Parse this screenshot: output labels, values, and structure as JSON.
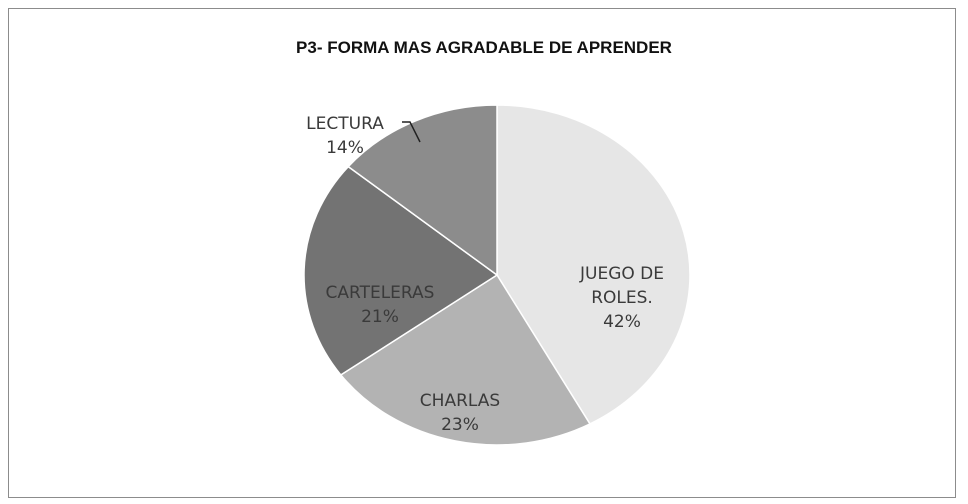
{
  "chart_data": {
    "type": "pie",
    "title": "P3- FORMA MAS AGRADABLE DE APRENDER",
    "categories": [
      "JUEGO DE ROLES.",
      "CHARLAS",
      "CARTELERAS",
      "LECTURA"
    ],
    "values": [
      42,
      23,
      21,
      14
    ],
    "value_labels": [
      "42%",
      "23%",
      "21%",
      "14%"
    ],
    "colors": [
      "#e6e6e6",
      "#b3b3b3",
      "#737373",
      "#8c8c8c"
    ]
  }
}
